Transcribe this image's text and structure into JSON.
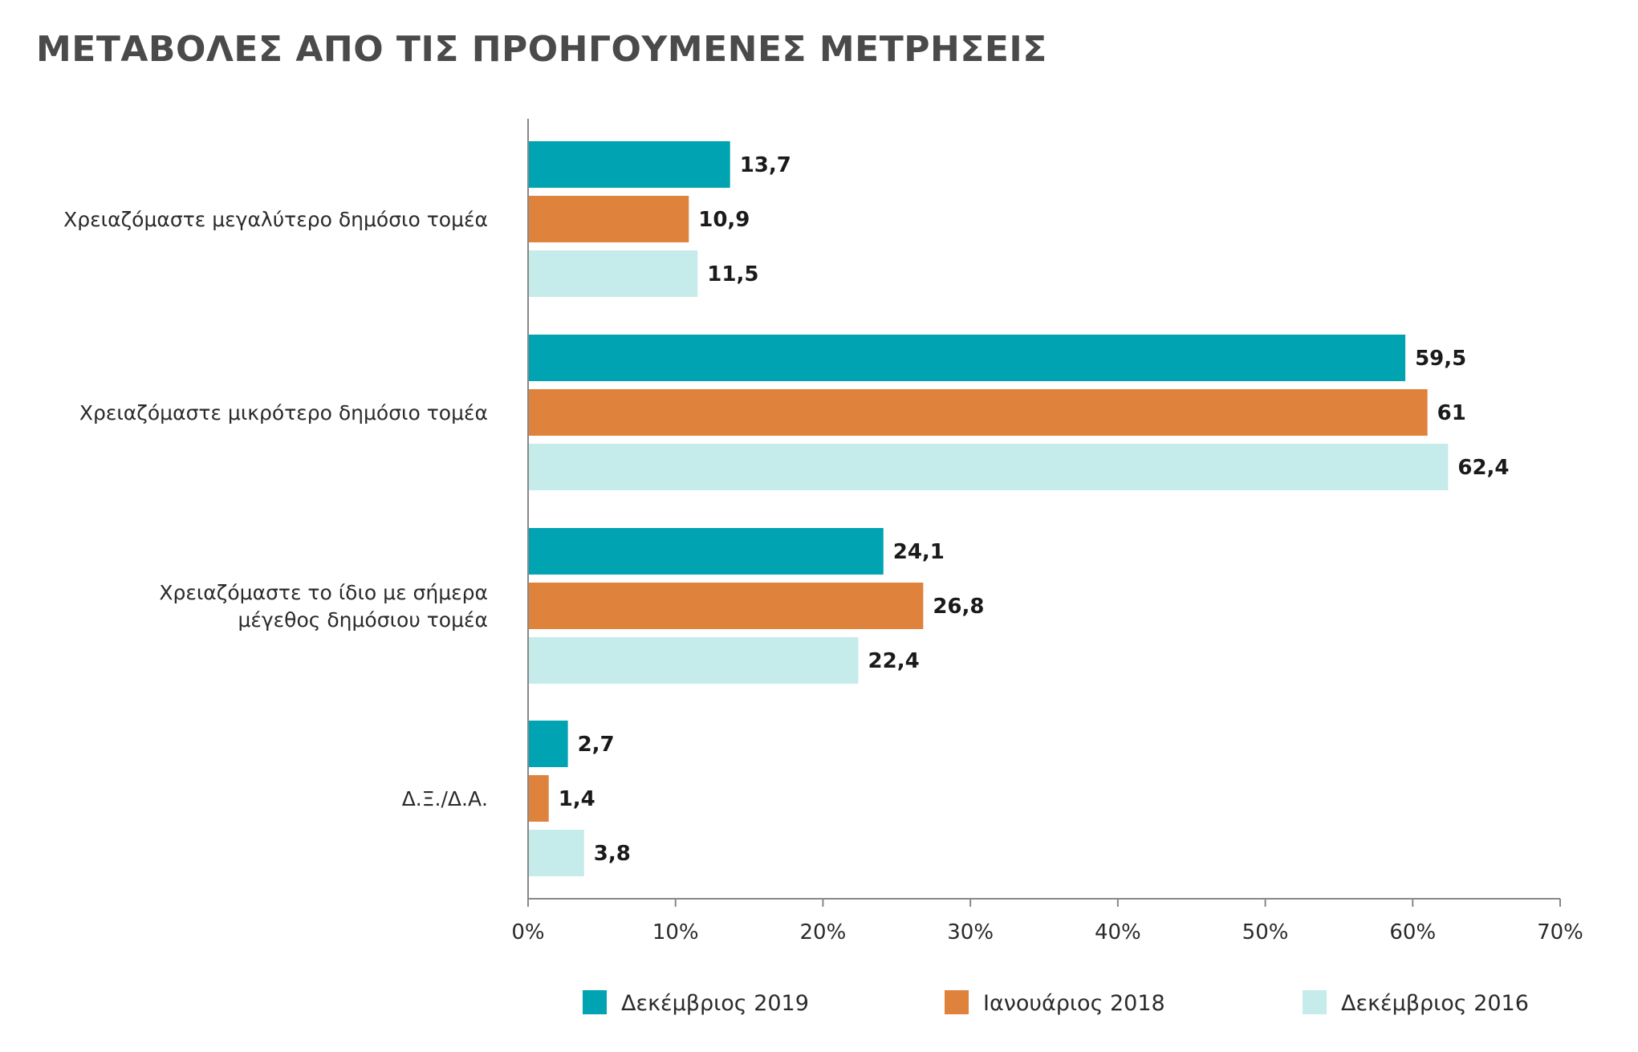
{
  "chart_data": {
    "type": "bar",
    "orientation": "horizontal",
    "title": "ΜΕΤΑΒΟΛΕΣ ΑΠΟ ΤΙΣ ΠΡΟΗΓΟΥΜΕΝΕΣ ΜΕΤΡΗΣΕΙΣ",
    "categories": [
      [
        "Χρειαζόμαστε μεγαλύτερο δημόσιο τομέα"
      ],
      [
        "Χρειαζόμαστε μικρότερο δημόσιο τομέα"
      ],
      [
        "Χρειαζόμαστε το ίδιο με σήμερα",
        "μέγεθος δημόσιου τομέα"
      ],
      [
        "Δ.Ξ./Δ.Α."
      ]
    ],
    "series": [
      {
        "name": "Δεκέμβριος 2019",
        "color": "#00a3b1",
        "values": [
          13.7,
          59.5,
          24.1,
          2.7
        ],
        "labels": [
          "13,7",
          "59,5",
          "24,1",
          "2,7"
        ]
      },
      {
        "name": "Ιανουάριος 2018",
        "color": "#df823b",
        "values": [
          10.9,
          61,
          26.8,
          1.4
        ],
        "labels": [
          "10,9",
          "61",
          "26,8",
          "1,4"
        ]
      },
      {
        "name": "Δεκέμβριος 2016",
        "color": "#c5ebeb",
        "values": [
          11.5,
          62.4,
          22.4,
          3.8
        ],
        "labels": [
          "11,5",
          "62,4",
          "22,4",
          "3,8"
        ]
      }
    ],
    "xlim": [
      0,
      70
    ],
    "ticks": [
      "0%",
      "10%",
      "20%",
      "30%",
      "40%",
      "50%",
      "60%",
      "70%"
    ],
    "grid": false,
    "legend_position": "bottom"
  }
}
